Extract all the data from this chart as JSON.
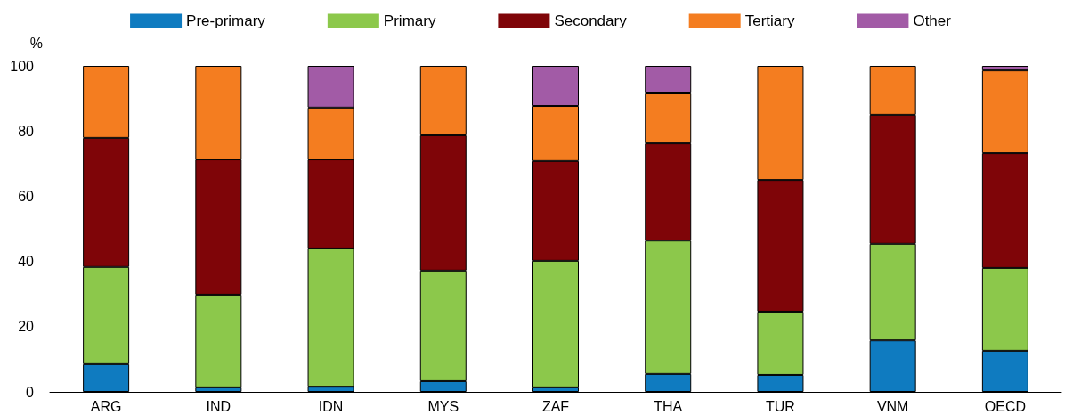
{
  "chart_data": {
    "type": "bar",
    "stacked": true,
    "ylabel": "%",
    "categories": [
      "ARG",
      "IND",
      "IDN",
      "MYS",
      "ZAF",
      "THA",
      "TUR",
      "VNM",
      "OECD"
    ],
    "series": [
      {
        "name": "Pre-primary",
        "color": "#0f7bc0",
        "values": [
          8.5,
          1.4,
          1.6,
          3.3,
          1.4,
          5.5,
          5.2,
          15.8,
          12.6
        ]
      },
      {
        "name": "Primary",
        "color": "#8cc84b",
        "values": [
          29.8,
          28.4,
          42.4,
          33.9,
          38.8,
          40.9,
          19.4,
          29.6,
          25.4
        ]
      },
      {
        "name": "Secondary",
        "color": "#7f0508",
        "values": [
          39.6,
          41.5,
          27.3,
          41.5,
          30.6,
          29.8,
          40.4,
          39.6,
          35.2
        ]
      },
      {
        "name": "Tertiary",
        "color": "#f47d20",
        "values": [
          22.1,
          28.7,
          15.9,
          21.3,
          16.9,
          15.6,
          35,
          15,
          25.4
        ]
      },
      {
        "name": "Other",
        "color": "#a25ba6",
        "values": [
          null,
          null,
          12.8,
          null,
          12.3,
          8.2,
          null,
          null,
          1.4
        ]
      }
    ],
    "ylim": [
      0,
      100
    ],
    "yticks": [
      0,
      20,
      40,
      60,
      80,
      100
    ],
    "grid": false,
    "legend": "top"
  }
}
